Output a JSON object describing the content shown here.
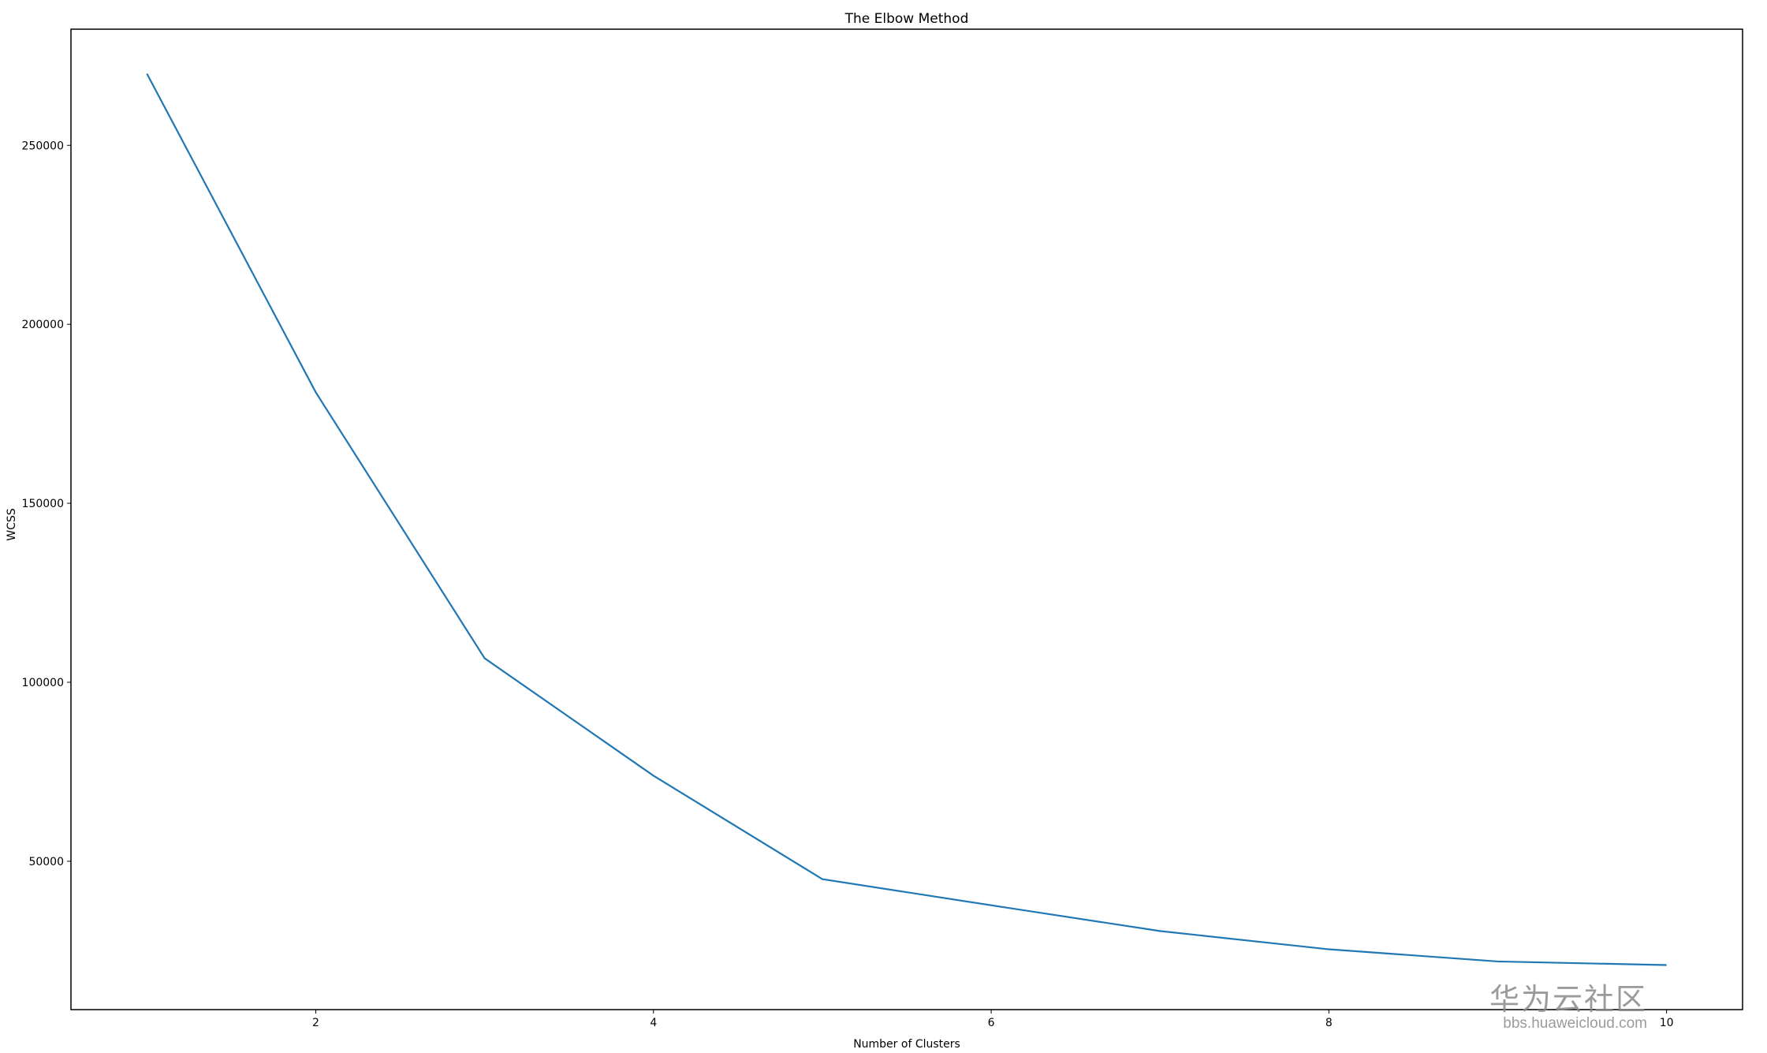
{
  "chart_data": {
    "type": "line",
    "title": "The Elbow Method",
    "xlabel": "Number of Clusters",
    "ylabel": "WCSS",
    "x": [
      1,
      2,
      3,
      4,
      5,
      6,
      7,
      8,
      9,
      10
    ],
    "series": [
      {
        "values": [
          270000,
          181000,
          106700,
          73900,
          45000,
          37700,
          30500,
          25400,
          22000,
          21000
        ],
        "color": "#1f77b4"
      }
    ],
    "xlim": [
      0.55,
      10.45
    ],
    "ylim": [
      8550,
      282450
    ],
    "xticks": [
      2,
      4,
      6,
      8,
      10
    ],
    "xtick_labels": [
      "2",
      "4",
      "6",
      "8",
      "10"
    ],
    "yticks": [
      50000,
      100000,
      150000,
      200000,
      250000
    ],
    "ytick_labels": [
      "50000",
      "100000",
      "150000",
      "200000",
      "250000"
    ],
    "grid": false,
    "legend": "none"
  },
  "watermark": {
    "cn": "华为云社区",
    "url": "bbs.huaweicloud.com"
  }
}
